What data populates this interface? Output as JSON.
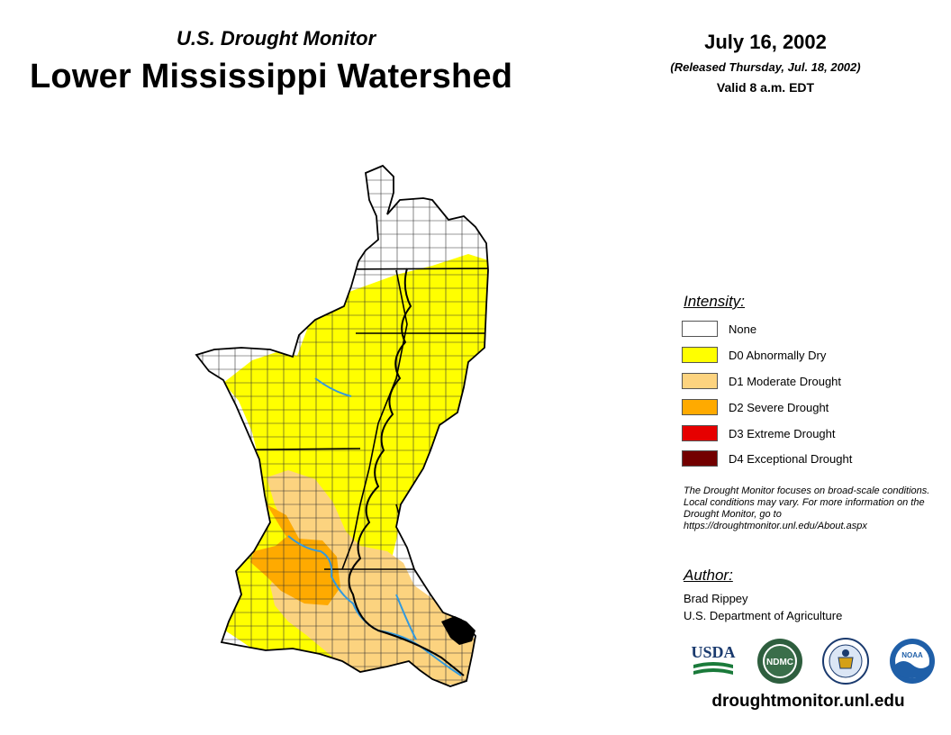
{
  "header": {
    "subtitle": "U.S. Drought Monitor",
    "title": "Lower Mississippi Watershed",
    "date": "July 16, 2002",
    "released": "(Released Thursday, Jul. 18, 2002)",
    "valid": "Valid 8 a.m. EDT"
  },
  "legend": {
    "heading": "Intensity:",
    "items": [
      {
        "label": "None",
        "color": "#ffffff"
      },
      {
        "label": "D0 Abnormally Dry",
        "color": "#ffff00"
      },
      {
        "label": "D1 Moderate Drought",
        "color": "#fcd37f"
      },
      {
        "label": "D2 Severe Drought",
        "color": "#ffaa00"
      },
      {
        "label": "D3 Extreme Drought",
        "color": "#e60000"
      },
      {
        "label": "D4 Exceptional Drought",
        "color": "#730000"
      }
    ]
  },
  "note": "The Drought Monitor focuses on broad-scale conditions. Local conditions may vary. For more information on the Drought Monitor, go to https://droughtmonitor.unl.edu/About.aspx",
  "author": {
    "heading": "Author:",
    "name": "Brad Rippey",
    "organization": "U.S. Department of Agriculture"
  },
  "logos": {
    "usda": "USDA",
    "ndmc": "NDMC",
    "doc": "department-of-commerce-seal",
    "noaa": "NOAA"
  },
  "footer": {
    "url": "droughtmonitor.unl.edu"
  },
  "colors": {
    "river": "#3399dd",
    "county_lines": "#333333"
  }
}
